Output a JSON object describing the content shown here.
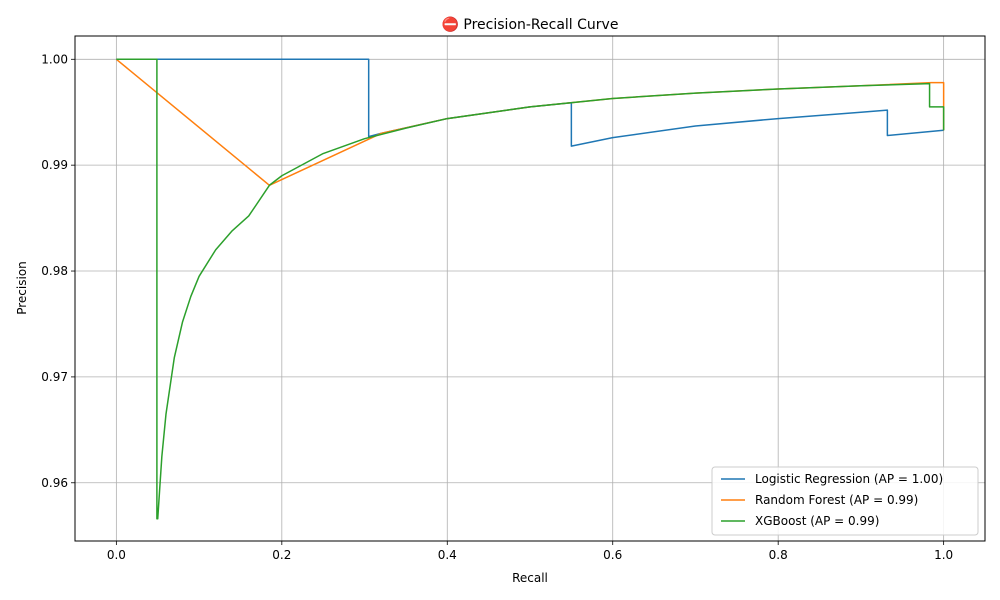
{
  "chart_data": {
    "type": "line",
    "title": "⛔ Precision-Recall Curve",
    "xlabel": "Recall",
    "ylabel": "Precision",
    "xlim": [
      -0.05,
      1.05
    ],
    "ylim": [
      0.9545,
      1.0022
    ],
    "xticks": [
      0.0,
      0.2,
      0.4,
      0.6,
      0.8,
      1.0
    ],
    "xtick_labels": [
      "0.0",
      "0.2",
      "0.4",
      "0.6",
      "0.8",
      "1.0"
    ],
    "yticks": [
      0.96,
      0.97,
      0.98,
      0.99,
      1.0
    ],
    "ytick_labels": [
      "0.96",
      "0.97",
      "0.98",
      "0.99",
      "1.00"
    ],
    "grid": true,
    "legend_position": "lower-right",
    "series": [
      {
        "name": "Logistic Regression (AP = 1.00)",
        "color": "#1f77b4",
        "x": [
          0,
          0.305,
          0.305,
          0.32,
          0.4,
          0.5,
          0.55,
          0.55,
          0.6,
          0.7,
          0.8,
          0.9,
          0.932,
          0.932,
          1.0,
          1.0
        ],
        "y": [
          1.0,
          1.0,
          0.9927,
          0.993,
          0.9944,
          0.9955,
          0.9959,
          0.9918,
          0.9926,
          0.9937,
          0.9944,
          0.995,
          0.9952,
          0.9928,
          0.9933,
          0.9933
        ]
      },
      {
        "name": "Random Forest (AP = 0.99)",
        "color": "#ff7f0e",
        "x": [
          0,
          0.185,
          0.32,
          0.4,
          0.5,
          0.6,
          0.7,
          0.8,
          0.9,
          0.985,
          1.0,
          1.0
        ],
        "y": [
          1.0,
          0.9881,
          0.993,
          0.9944,
          0.9955,
          0.9963,
          0.9968,
          0.9972,
          0.9975,
          0.9978,
          0.9978,
          0.9933
        ]
      },
      {
        "name": "XGBoost (AP = 0.99)",
        "color": "#2ca02c",
        "x": [
          0,
          0.049,
          0.049,
          0.05,
          0.055,
          0.06,
          0.07,
          0.08,
          0.09,
          0.1,
          0.12,
          0.14,
          0.16,
          0.185,
          0.2,
          0.25,
          0.3,
          0.35,
          0.4,
          0.5,
          0.6,
          0.7,
          0.8,
          0.9,
          0.983,
          0.983,
          1.0,
          1.0
        ],
        "y": [
          1.0,
          1.0,
          0.9566,
          0.9566,
          0.9625,
          0.9665,
          0.9718,
          0.9752,
          0.9776,
          0.9795,
          0.982,
          0.9838,
          0.9852,
          0.9881,
          0.989,
          0.9911,
          0.9925,
          0.9935,
          0.9944,
          0.9955,
          0.9963,
          0.9968,
          0.9972,
          0.9975,
          0.9977,
          0.9955,
          0.9955,
          0.9933
        ]
      }
    ]
  }
}
